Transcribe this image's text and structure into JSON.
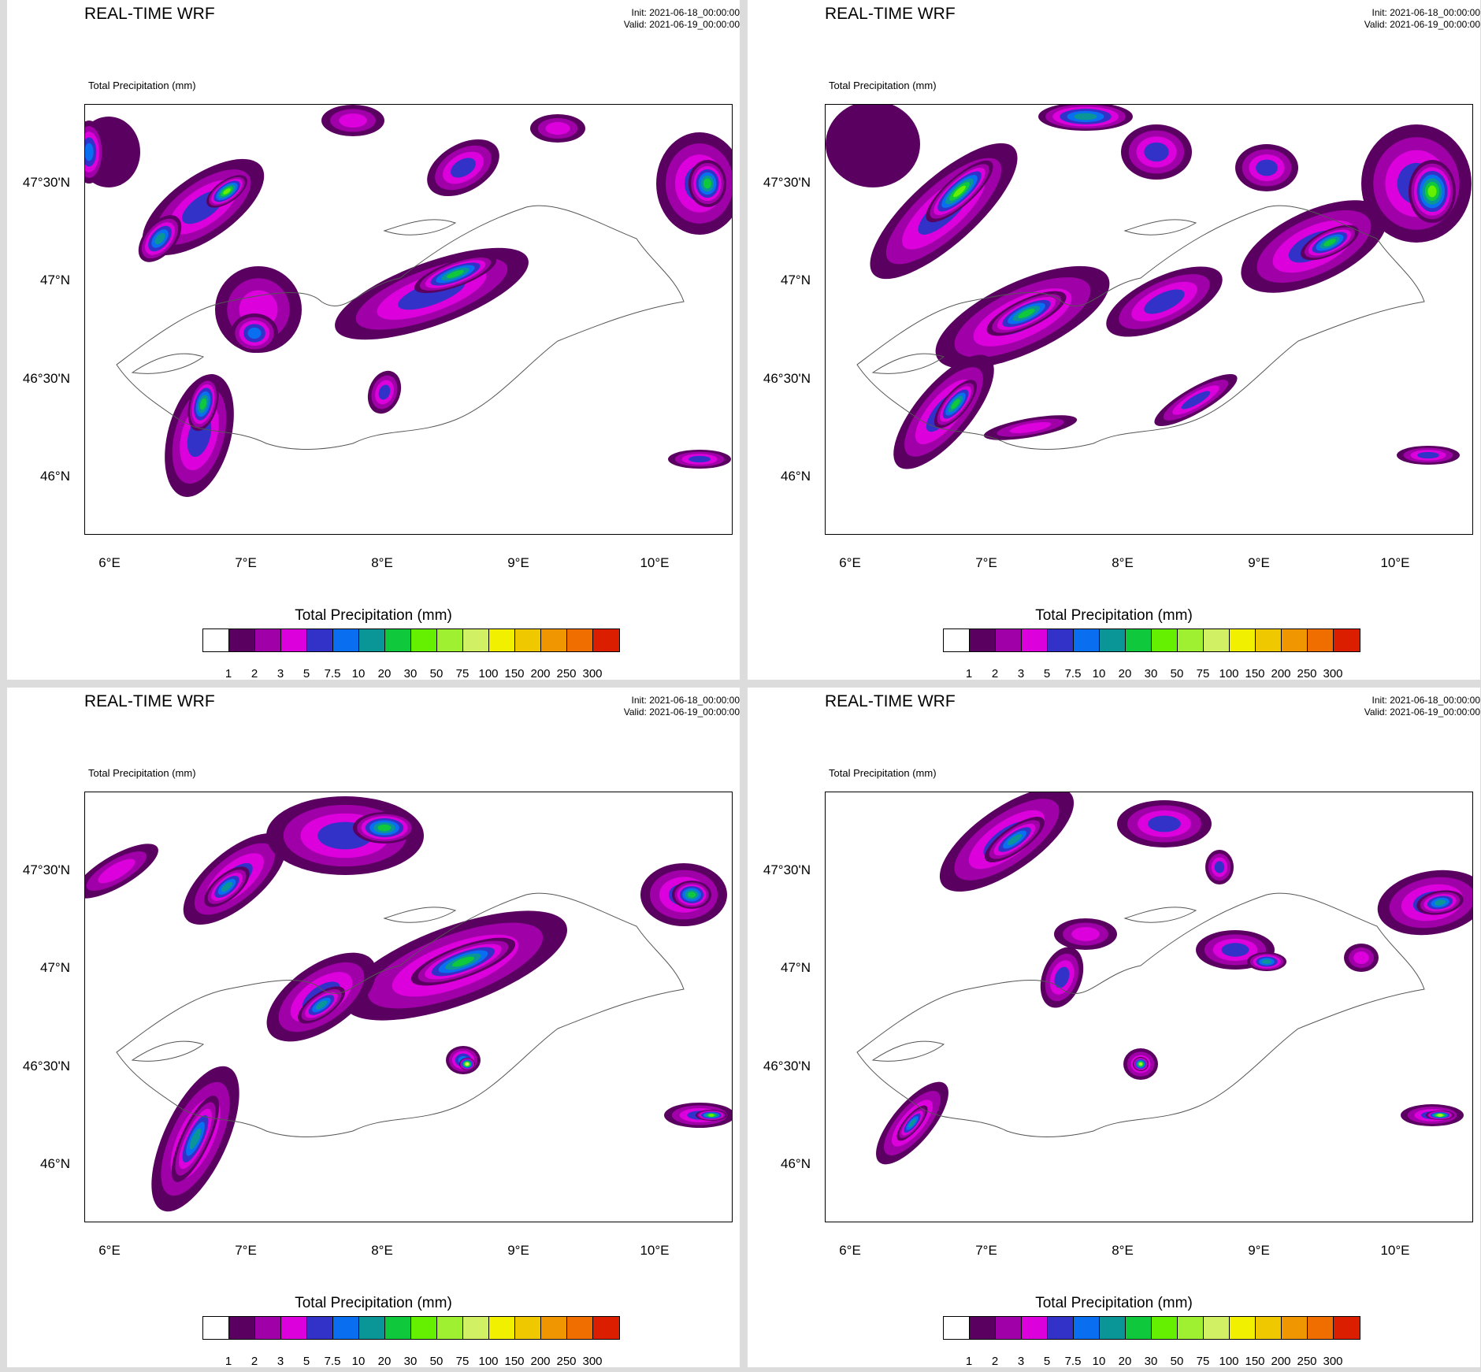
{
  "panels": [
    {
      "title": "REAL-TIME WRF",
      "init": "Init: 2021-06-18_00:00:00",
      "valid": "Valid: 2021-06-19_00:00:00",
      "subtitle": "Total Precipitation   (mm)"
    },
    {
      "title": "REAL-TIME WRF",
      "init": "Init: 2021-06-18_00:00:00",
      "valid": "Valid: 2021-06-19_00:00:00",
      "subtitle": "Total Precipitation   (mm)"
    },
    {
      "title": "REAL-TIME WRF",
      "init": "Init: 2021-06-18_00:00:00",
      "valid": "Valid: 2021-06-19_00:00:00",
      "subtitle": "Total Precipitation   (mm)"
    },
    {
      "title": "REAL-TIME WRF",
      "init": "Init: 2021-06-18_00:00:00",
      "valid": "Valid: 2021-06-19_00:00:00",
      "subtitle": "Total Precipitation   (mm)"
    }
  ],
  "map_axes": {
    "lat_labels": [
      "47°30'N",
      "47°N",
      "46°30'N",
      "46°N"
    ],
    "lon_labels": [
      "6°E",
      "7°E",
      "8°E",
      "9°E",
      "10°E"
    ]
  },
  "colorbar": {
    "title": "Total Precipitation  (mm)",
    "levels": [
      "1",
      "2",
      "3",
      "5",
      "7.5",
      "10",
      "20",
      "30",
      "50",
      "75",
      "100",
      "150",
      "200",
      "250",
      "300"
    ],
    "colors": [
      "#ffffff",
      "#5a0060",
      "#a000a8",
      "#dc00dc",
      "#3232c8",
      "#0a6ef0",
      "#0a9696",
      "#10c83c",
      "#64f000",
      "#a0f032",
      "#d2f064",
      "#f0f000",
      "#f0c800",
      "#f09600",
      "#f06e00",
      "#dc1e00"
    ]
  }
}
